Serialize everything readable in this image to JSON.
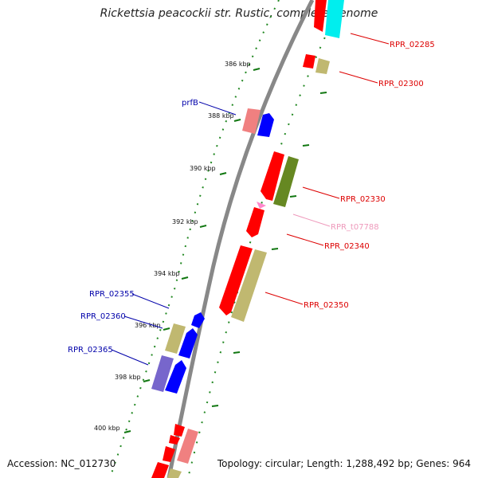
{
  "title": "Rickettsia peacockii str. Rustic, complete genome",
  "footer": {
    "accession": "Accession: NC_012730",
    "summary": "Topology: circular; Length: 1,288,492 bp; Genes: 964"
  },
  "ticks": [
    {
      "label": "386 kbp"
    },
    {
      "label": "388 kbp"
    },
    {
      "label": "390 kbp"
    },
    {
      "label": "392 kbp"
    },
    {
      "label": "394 kbp"
    },
    {
      "label": "396 kbp"
    },
    {
      "label": "398 kbp"
    },
    {
      "label": "400 kbp"
    }
  ],
  "gene_labels": [
    {
      "text": "RPR_02285",
      "color": "#dd0000"
    },
    {
      "text": "RPR_02300",
      "color": "#dd0000"
    },
    {
      "text": "prfB",
      "color": "#0000aa"
    },
    {
      "text": "RPR_02330",
      "color": "#dd0000"
    },
    {
      "text": "RPR_t07788",
      "color": "#ee99bb"
    },
    {
      "text": "RPR_02340",
      "color": "#dd0000"
    },
    {
      "text": "RPR_02350",
      "color": "#dd0000"
    },
    {
      "text": "RPR_02355",
      "color": "#0000aa"
    },
    {
      "text": "RPR_02360",
      "color": "#0000aa"
    },
    {
      "text": "RPR_02365",
      "color": "#0000aa"
    }
  ],
  "colors": {
    "backbone": "#888888",
    "tick": "#117711",
    "red_gene": "#ff0000",
    "pink_gene": "#f08080",
    "blue_gene": "#0000ff",
    "lavender_gene": "#7766cc",
    "olive_gene": "#c0b870",
    "green_gene": "#668822",
    "cyan_gene": "#00eeee",
    "trna": "#ff88cc"
  }
}
